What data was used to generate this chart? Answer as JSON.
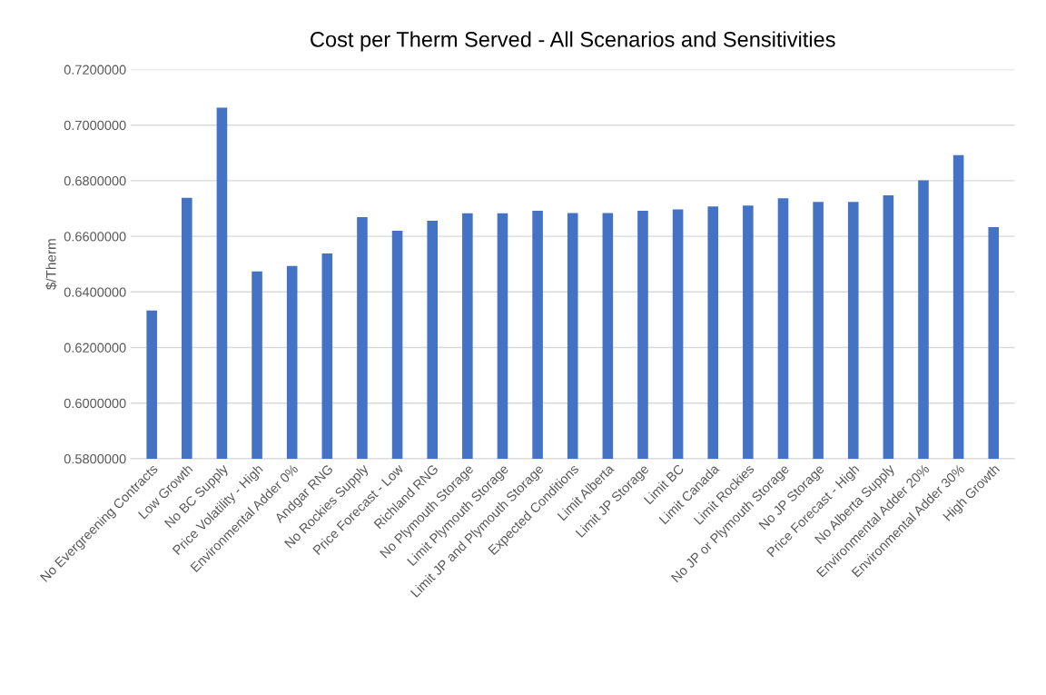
{
  "chart_data": {
    "type": "bar",
    "title": "Cost per Therm Served - All Scenarios and Sensitivities",
    "ylabel": "$/Therm",
    "categories": [
      "No Evergreening Contracts",
      "Low Growth",
      "No BC Supply",
      "Price Volatility - High",
      "Environmental Adder 0%",
      "Andgar RNG",
      "No Rockies Supply",
      "Price Forecast - Low",
      "Richland RNG",
      "No Plymouth Storage",
      "Limit Plymouth Storage",
      "Limit JP and Plymouth Storage",
      "Expected Conditions",
      "Limit Alberta",
      "Limit JP Storage",
      "Limit BC",
      "Limit Canada",
      "Limit Rockies",
      "No JP or Plymouth Storage",
      "No JP Storage",
      "Price Forecast - High",
      "No Alberta Supply",
      "Environmental Adder 20%",
      "Environmental Adder 30%",
      "High Growth"
    ],
    "values": [
      0.6333,
      0.6738,
      0.7063,
      0.6474,
      0.6493,
      0.6538,
      0.6669,
      0.662,
      0.6656,
      0.6683,
      0.6683,
      0.6692,
      0.6684,
      0.6684,
      0.6692,
      0.6697,
      0.6707,
      0.6711,
      0.6737,
      0.6724,
      0.6724,
      0.6747,
      0.6801,
      0.6892,
      0.6633
    ],
    "color": "#4472c4",
    "ylim": [
      0.58,
      0.72
    ],
    "yticks": [
      {
        "value": 0.58,
        "label": "0.5800000"
      },
      {
        "value": 0.6,
        "label": "0.6000000"
      },
      {
        "value": 0.62,
        "label": "0.6200000"
      },
      {
        "value": 0.64,
        "label": "0.6400000"
      },
      {
        "value": 0.66,
        "label": "0.6600000"
      },
      {
        "value": 0.68,
        "label": "0.6800000"
      },
      {
        "value": 0.7,
        "label": "0.7000000"
      },
      {
        "value": 0.72,
        "label": "0.7200000"
      }
    ],
    "grid": "y",
    "legend": false
  }
}
